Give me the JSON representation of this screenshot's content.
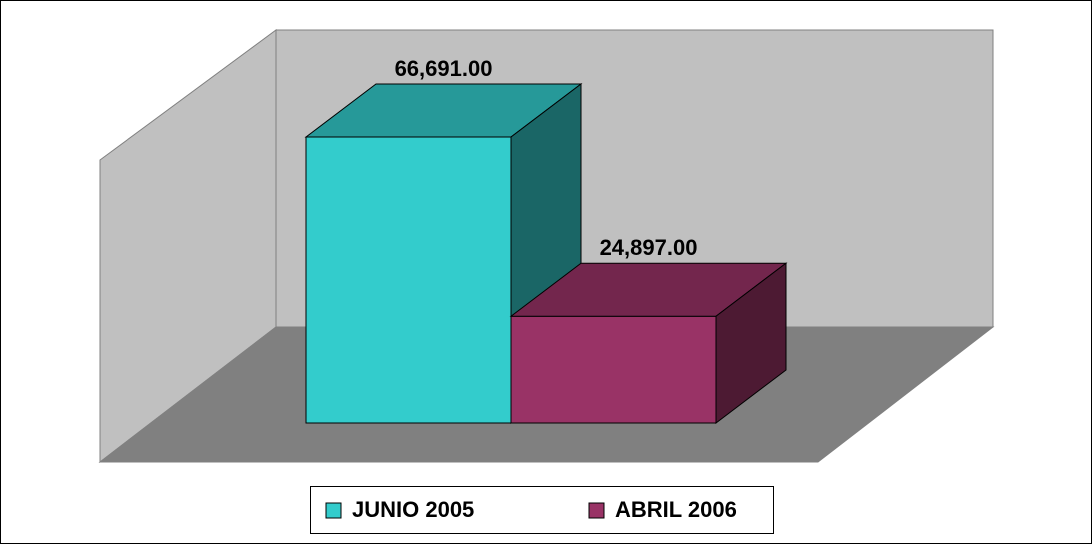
{
  "chart_data": {
    "type": "bar3d",
    "series": [
      {
        "name": "JUNIO 2005",
        "color": "#33cccc",
        "values": [
          66691
        ],
        "value_labels": [
          "66,691.00"
        ]
      },
      {
        "name": "ABRIL 2006",
        "color": "#993366",
        "values": [
          24897
        ],
        "value_labels": [
          "24,897.00"
        ]
      }
    ],
    "legend": "bottom"
  }
}
